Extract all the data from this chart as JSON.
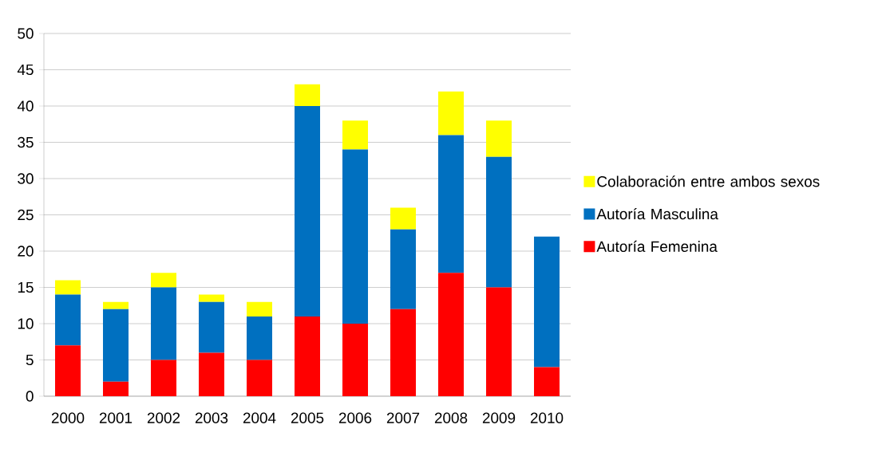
{
  "chart_data": {
    "type": "bar",
    "stacked": true,
    "categories": [
      "2000",
      "2001",
      "2002",
      "2003",
      "2004",
      "2005",
      "2006",
      "2007",
      "2008",
      "2009",
      "2010"
    ],
    "series": [
      {
        "name": "Autoría Femenina",
        "color": "#ff0000",
        "values": [
          7,
          2,
          5,
          6,
          5,
          11,
          10,
          12,
          17,
          15,
          4
        ]
      },
      {
        "name": "Autoría Masculina",
        "color": "#0070c0",
        "values": [
          7,
          10,
          10,
          7,
          6,
          29,
          24,
          11,
          19,
          18,
          18
        ]
      },
      {
        "name": "Colaboración entre ambos sexos",
        "color": "#ffff00",
        "values": [
          2,
          1,
          2,
          1,
          2,
          3,
          4,
          3,
          6,
          5,
          0
        ]
      }
    ],
    "ylim": [
      0,
      50
    ],
    "yticks": [
      0,
      5,
      10,
      15,
      20,
      25,
      30,
      35,
      40,
      45,
      50
    ],
    "grid": "y",
    "legend": "right"
  }
}
